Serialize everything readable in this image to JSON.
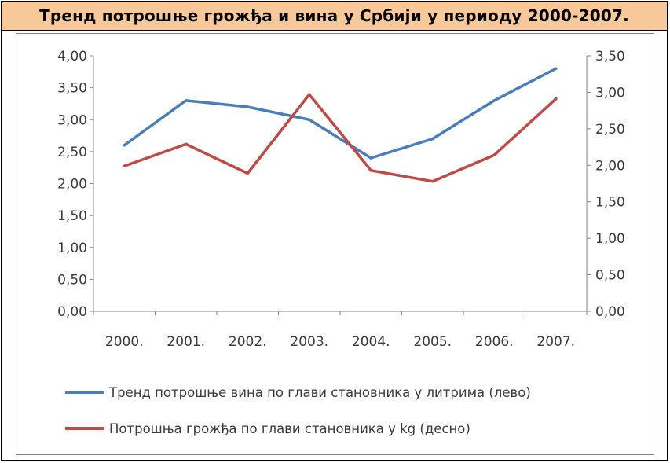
{
  "title": "Тренд потрошње грожђа и вина у Србији у периоду 2000-2007.",
  "colors": {
    "header_bg": "#f7c89a",
    "wine_series": "#4a7ebb",
    "grape_series": "#be4b48",
    "axis": "#868686"
  },
  "chart_data": {
    "type": "line",
    "title": "",
    "categories": [
      "2000.",
      "2001.",
      "2002.",
      "2003.",
      "2004.",
      "2005.",
      "2006.",
      "2007."
    ],
    "y_left": {
      "range": [
        0,
        4
      ],
      "ticks": [
        "4,00",
        "3,50",
        "3,00",
        "2,50",
        "2,00",
        "1,50",
        "1,00",
        "0,50",
        "0,00"
      ]
    },
    "y_right": {
      "range": [
        0,
        3.5
      ],
      "ticks": [
        "3,50",
        "3,00",
        "2,50",
        "2,00",
        "1,50",
        "1,00",
        "0,50",
        "0,00"
      ]
    },
    "grid": false,
    "legend_position": "bottom",
    "series": [
      {
        "name": "Тренд потрошње вина по глави становника у литрима (лево)",
        "axis": "left",
        "color": "#4a7ebb",
        "values": [
          2.6,
          3.3,
          3.2,
          3.0,
          2.4,
          2.7,
          3.3,
          3.8
        ]
      },
      {
        "name": "Потрошња грожђа по глави становника у kg (десно)",
        "axis": "right",
        "color": "#be4b48",
        "values": [
          1.99,
          2.29,
          1.89,
          2.97,
          1.93,
          1.78,
          2.14,
          2.91
        ]
      }
    ]
  }
}
